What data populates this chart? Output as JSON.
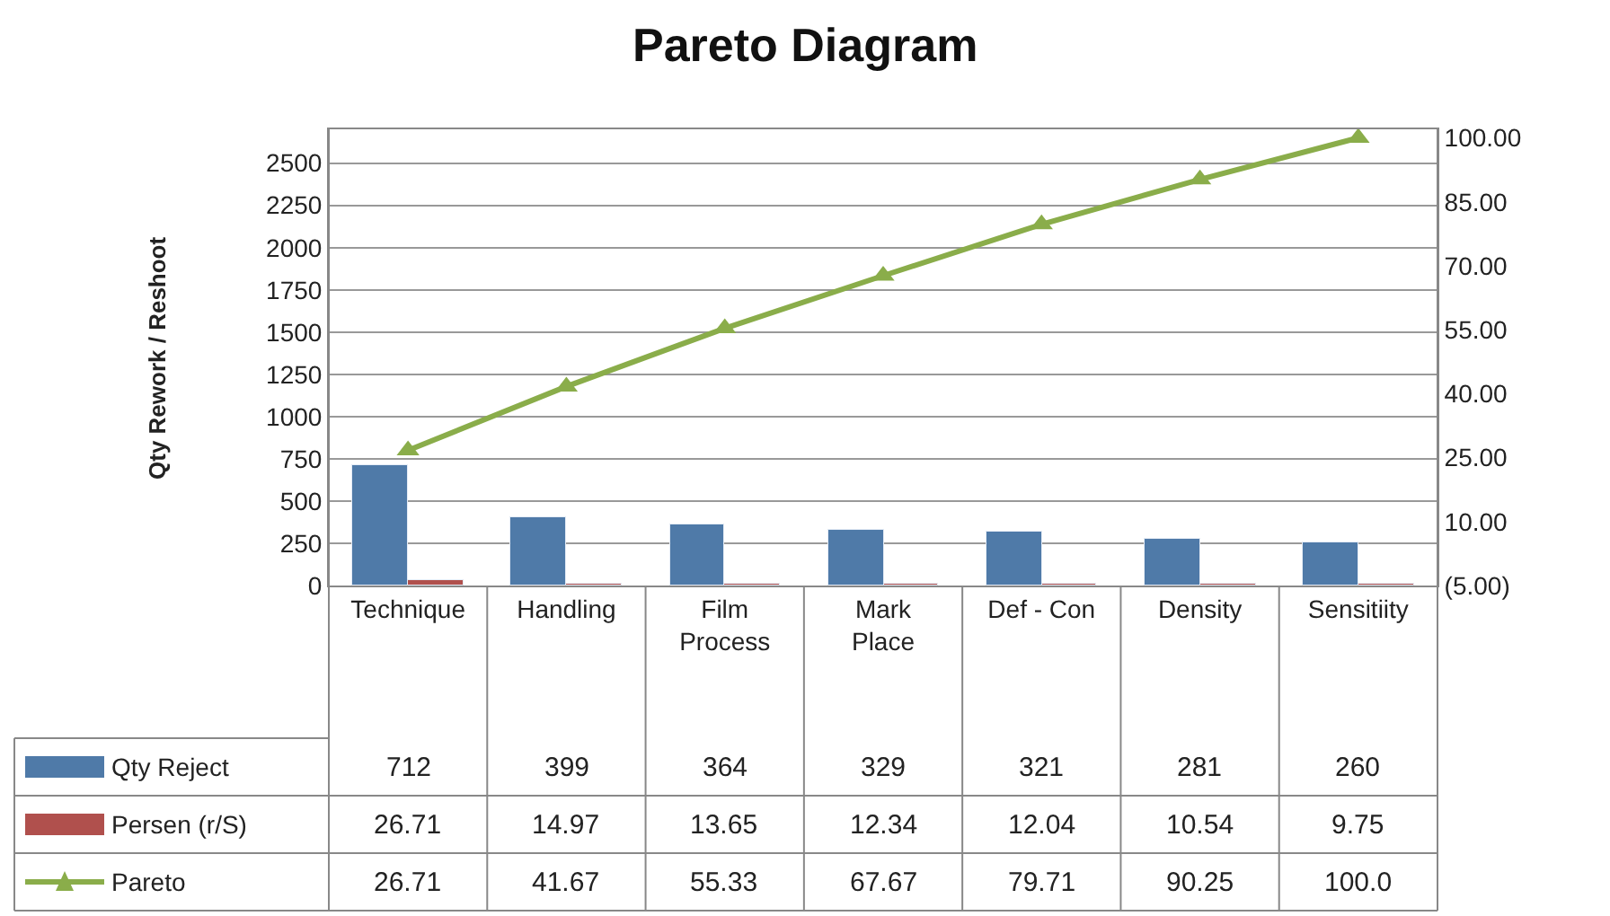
{
  "chart_data": {
    "type": "bar",
    "title": "Pareto Diagram",
    "ylabel": "Qty Rework / Reshoot",
    "categories": [
      "Technique",
      "Handling",
      "Film Process",
      "Mark Place",
      "Def - Con",
      "Density",
      "Sensitiity"
    ],
    "series": [
      {
        "name": "Qty Reject",
        "color": "#4f7aa8",
        "values": [
          712,
          399,
          364,
          329,
          321,
          281,
          260
        ],
        "value_labels": [
          "712",
          "399",
          "364",
          "329",
          "321",
          "281",
          "260"
        ]
      },
      {
        "name": "Persen (r/S)",
        "color": "#b0504d",
        "values": [
          26.71,
          14.97,
          13.65,
          12.34,
          12.04,
          10.54,
          9.75
        ],
        "value_labels": [
          "26.71",
          "14.97",
          "13.65",
          "12.34",
          "12.04",
          "10.54",
          "9.75"
        ]
      },
      {
        "name": "Pareto",
        "type": "line",
        "axis": "y2",
        "color": "#8aad4a",
        "marker": "triangle",
        "values": [
          26.71,
          41.67,
          55.33,
          67.67,
          79.71,
          90.25,
          100.0
        ],
        "value_labels": [
          "26.71",
          "41.67",
          "55.33",
          "67.67",
          "79.71",
          "90.25",
          "100.0"
        ]
      }
    ],
    "ylim": [
      0,
      2700
    ],
    "yticks": [
      0,
      250,
      500,
      750,
      1000,
      1250,
      1500,
      1750,
      2000,
      2250,
      2500
    ],
    "y2lim": [
      -5,
      102
    ],
    "y2ticks": [
      {
        "value": -5,
        "label": "(5.00)"
      },
      {
        "value": 10,
        "label": "10.00"
      },
      {
        "value": 25,
        "label": "25.00"
      },
      {
        "value": 40,
        "label": "40.00"
      },
      {
        "value": 55,
        "label": "55.00"
      },
      {
        "value": 70,
        "label": "70.00"
      },
      {
        "value": 85,
        "label": "85.00"
      },
      {
        "value": 100,
        "label": "100.00"
      }
    ],
    "grid": "y",
    "legend": "bottom left"
  }
}
